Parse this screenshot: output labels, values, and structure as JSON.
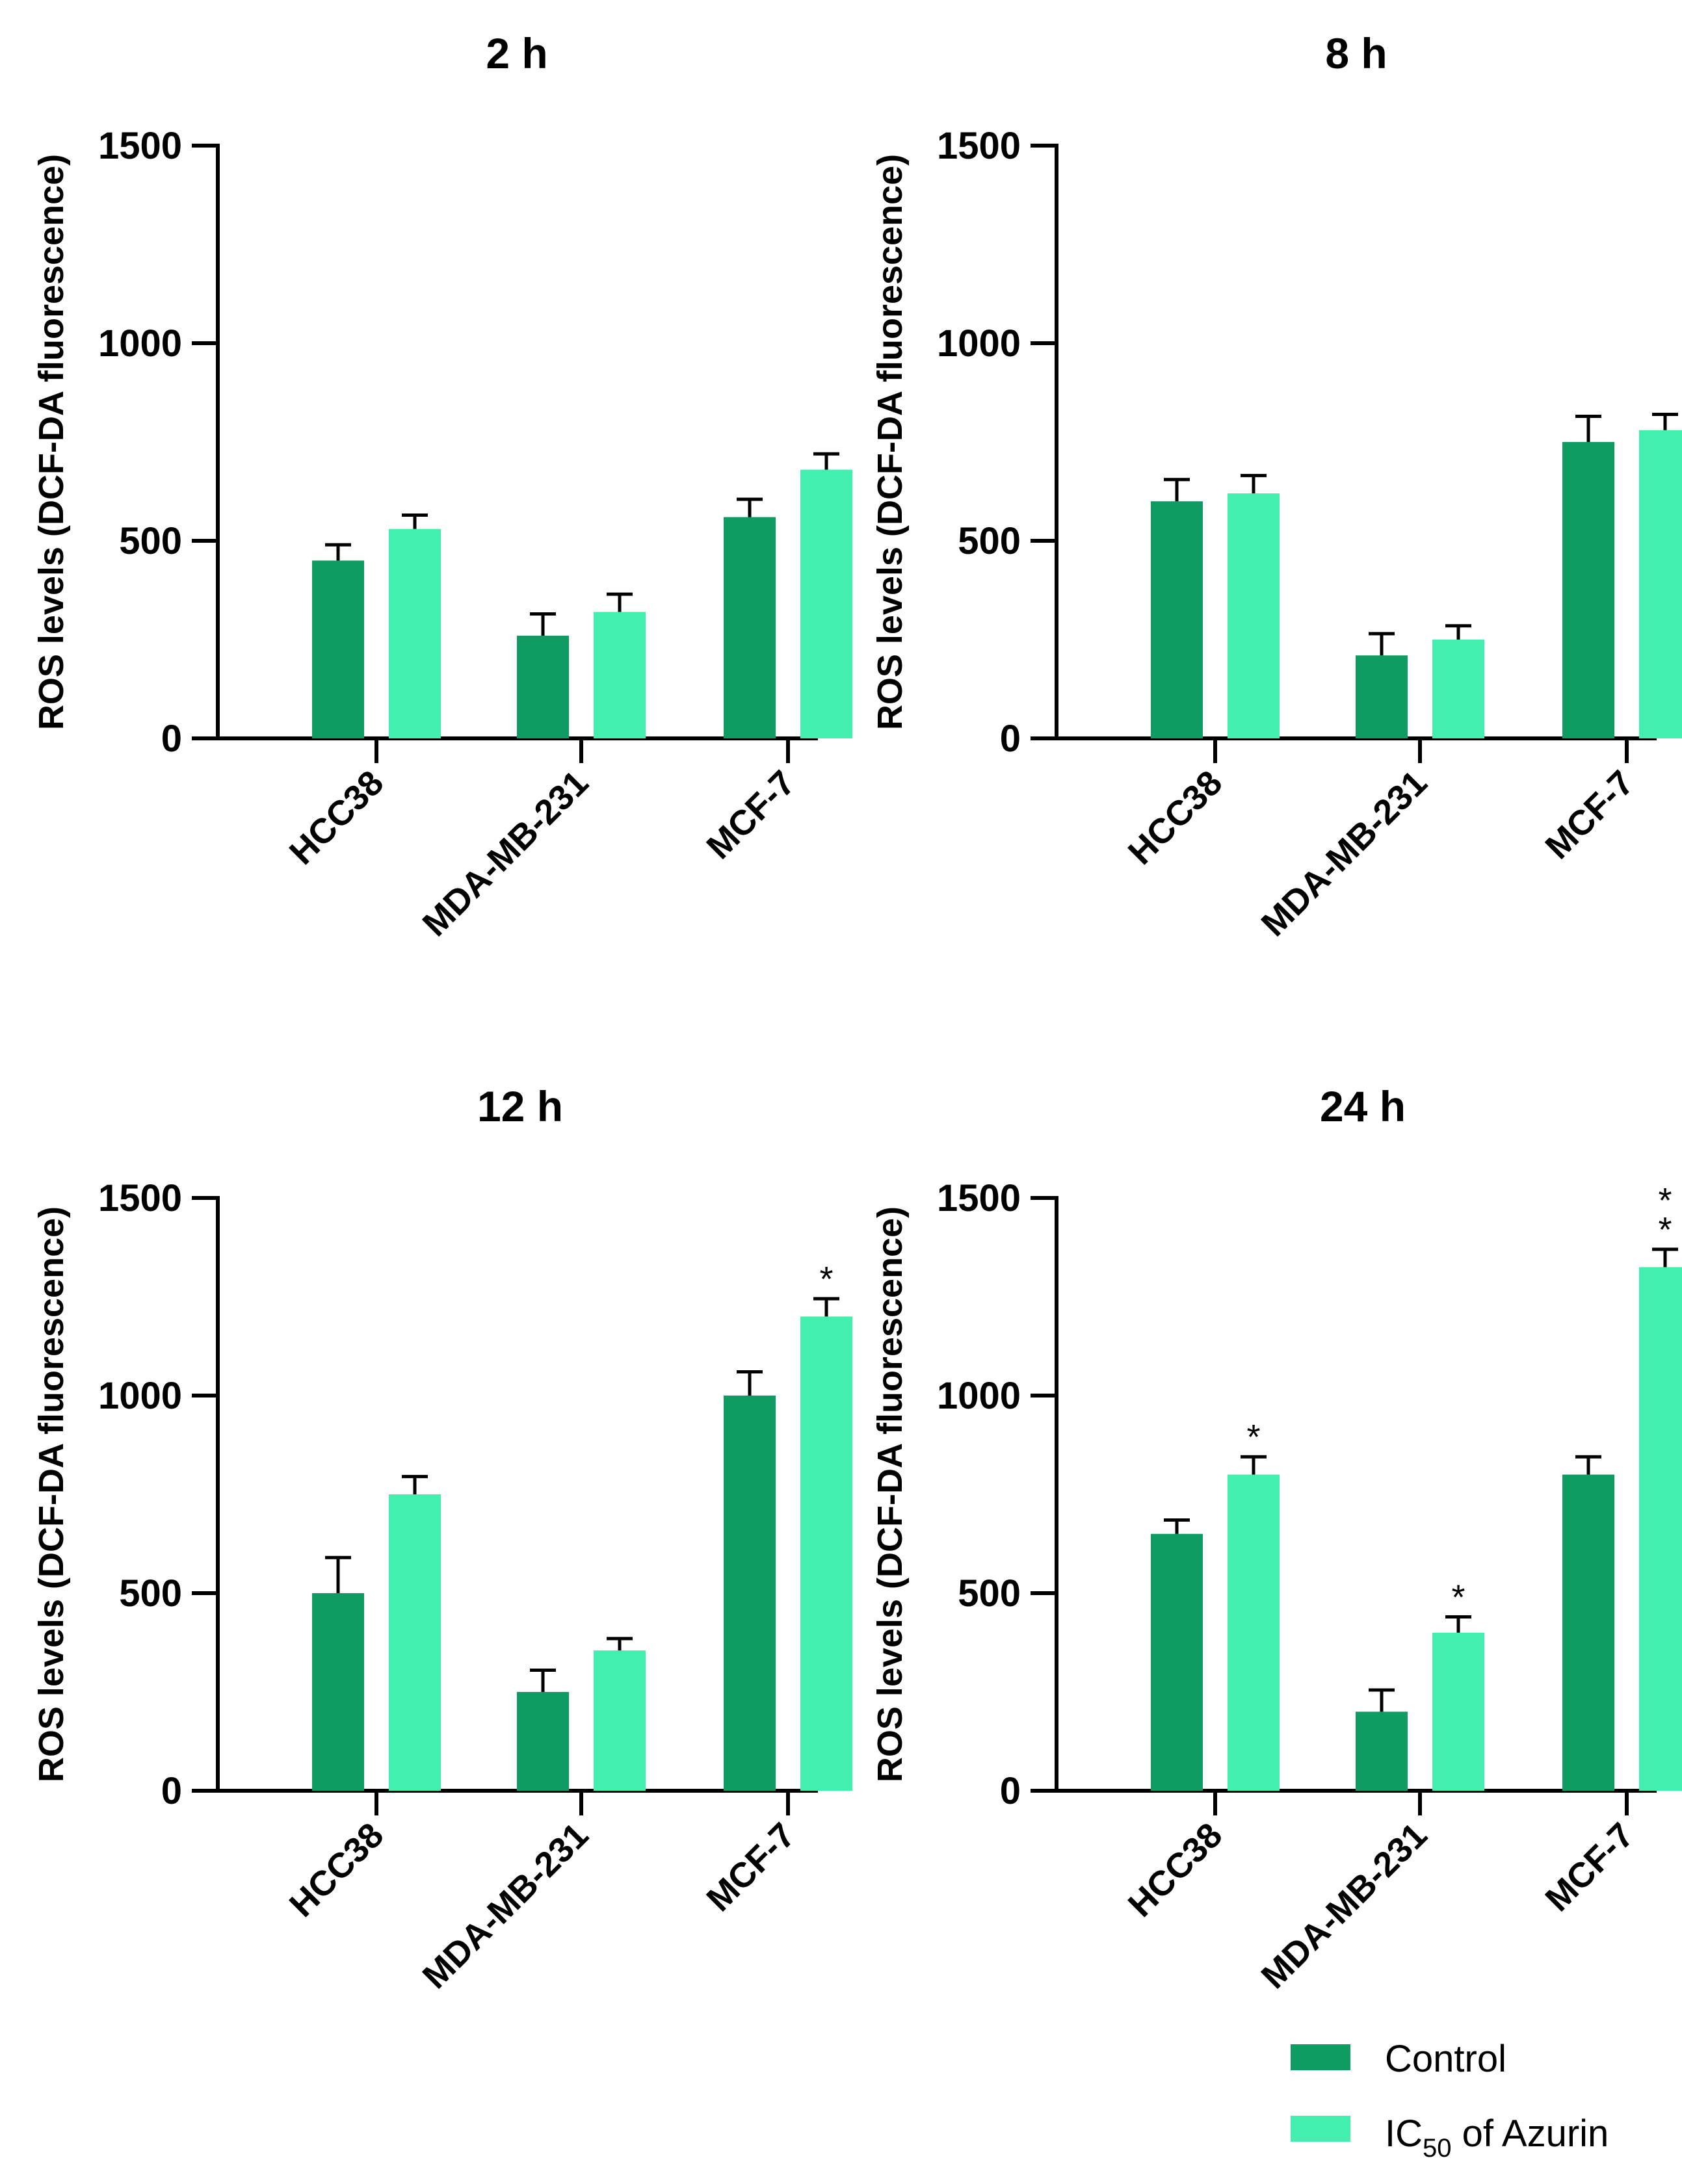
{
  "chart_data": [
    {
      "type": "bar",
      "title": "2 h",
      "ylabel": "ROS levels (DCF-DA fluorescence)",
      "ylim": [
        0,
        1500
      ],
      "yticks": [
        0,
        500,
        1000,
        1500
      ],
      "categories": [
        "HCC38",
        "MDA-MB-231",
        "MCF-7"
      ],
      "series": [
        {
          "name": "Control",
          "values": [
            450,
            260,
            560
          ],
          "errors": [
            40,
            55,
            45
          ]
        },
        {
          "name": "IC50 of Azurin",
          "values": [
            530,
            320,
            680
          ],
          "errors": [
            35,
            45,
            40
          ]
        }
      ],
      "annotations": [
        [
          "",
          "",
          ""
        ],
        [
          "",
          "",
          ""
        ]
      ]
    },
    {
      "type": "bar",
      "title": "8 h",
      "ylabel": "ROS levels (DCF-DA fluorescence)",
      "ylim": [
        0,
        1500
      ],
      "yticks": [
        0,
        500,
        1000,
        1500
      ],
      "categories": [
        "HCC38",
        "MDA-MB-231",
        "MCF-7"
      ],
      "series": [
        {
          "name": "Control",
          "values": [
            600,
            210,
            750
          ],
          "errors": [
            55,
            55,
            65
          ]
        },
        {
          "name": "IC50 of Azurin",
          "values": [
            620,
            250,
            780
          ],
          "errors": [
            45,
            35,
            40
          ]
        }
      ],
      "annotations": [
        [
          "",
          "",
          ""
        ],
        [
          "",
          "",
          ""
        ]
      ]
    },
    {
      "type": "bar",
      "title": "12 h",
      "ylabel": "ROS levels (DCF-DA fluorescence)",
      "ylim": [
        0,
        1500
      ],
      "yticks": [
        0,
        500,
        1000,
        1500
      ],
      "categories": [
        "HCC38",
        "MDA-MB-231",
        "MCF-7"
      ],
      "series": [
        {
          "name": "Control",
          "values": [
            500,
            250,
            1000
          ],
          "errors": [
            90,
            55,
            60
          ]
        },
        {
          "name": "IC50 of Azurin",
          "values": [
            750,
            355,
            1200
          ],
          "errors": [
            45,
            30,
            45
          ]
        }
      ],
      "annotations": [
        [
          "",
          "",
          ""
        ],
        [
          "",
          "",
          "*"
        ]
      ]
    },
    {
      "type": "bar",
      "title": "24 h",
      "ylabel": "ROS levels (DCF-DA fluorescence)",
      "ylim": [
        0,
        1500
      ],
      "yticks": [
        0,
        500,
        1000,
        1500
      ],
      "categories": [
        "HCC38",
        "MDA-MB-231",
        "MCF-7"
      ],
      "series": [
        {
          "name": "Control",
          "values": [
            650,
            200,
            800
          ],
          "errors": [
            35,
            55,
            45
          ]
        },
        {
          "name": "IC50 of Azurin",
          "values": [
            800,
            400,
            1325
          ],
          "errors": [
            45,
            40,
            45
          ]
        }
      ],
      "annotations": [
        [
          "",
          "",
          ""
        ],
        [
          "*",
          "*",
          "**"
        ]
      ]
    }
  ],
  "legend": {
    "items": [
      {
        "label": "Control",
        "color": "#0e9c63"
      },
      {
        "label_main": "IC",
        "label_sub": "50",
        "label_rest": " of Azurin",
        "color": "#43efaf"
      }
    ]
  },
  "colors": {
    "control": "#0e9c63",
    "azurin": "#43efaf"
  }
}
